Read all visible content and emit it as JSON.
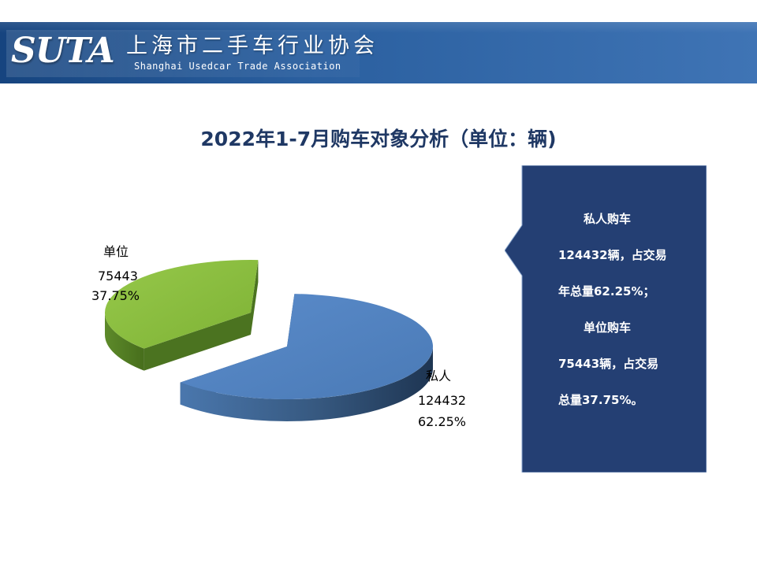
{
  "header": {
    "logo_text": "SUTA",
    "org_name_cn": "上海市二手车行业协会",
    "org_name_en": "Shanghai Usedcar Trade Association"
  },
  "chart_data": {
    "type": "pie",
    "title": "2022年1-7月购车对象分析（单位：辆)",
    "categories": [
      "私人",
      "单位"
    ],
    "values": [
      124432,
      75443
    ],
    "percent_labels": [
      "62.25%",
      "37.75%"
    ],
    "value_labels": [
      "124432",
      "75443"
    ],
    "colors": [
      "#4f81bd",
      "#8cbf3f"
    ],
    "exploded": true,
    "three_d": true,
    "legend": "none"
  },
  "callout": {
    "lines": [
      "私人购车",
      "124432辆，占交易",
      "年总量62.25%；",
      "单位购车",
      "75443辆，占交易",
      "总量37.75%。"
    ],
    "bg_color": "#243f73"
  }
}
